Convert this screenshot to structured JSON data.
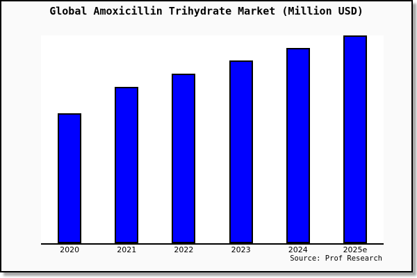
{
  "chart_data": {
    "type": "bar",
    "title": "Global Amoxicillin Trihydrate Market (Million USD)",
    "categories": [
      "2020",
      "2021",
      "2022",
      "2023",
      "2024",
      "2025e"
    ],
    "values": [
      62.5,
      75.3,
      81.6,
      88.0,
      94.0,
      100.0
    ],
    "values_unit": "percent of tallest bar; chart displays no numeric value axis",
    "ylim": [
      0,
      100
    ],
    "xlabel": "",
    "ylabel": "",
    "grid": false,
    "legend": "none",
    "source_note": "Source: Prof Research",
    "colors": {
      "bar_fill": "#0000ff",
      "bar_border": "#000000",
      "plot_background": "#ffffff",
      "figure_background": "#fafafa",
      "frame_border": "#000000",
      "text": "#000000"
    }
  }
}
